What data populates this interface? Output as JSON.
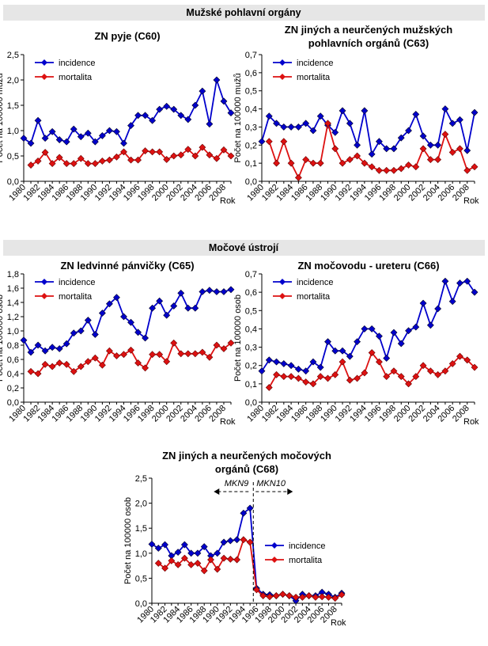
{
  "headers": [
    "Mužské pohlavní orgány",
    "Močové ústrojí"
  ],
  "chart_data": [
    {
      "type": "line",
      "title": [
        "ZN pyje (C60)"
      ],
      "ylabel": "Počet na 100000 mužů",
      "xlabel": "Rok",
      "legend": "upper left",
      "categories": [
        "1980",
        null,
        "1982",
        null,
        "1984",
        null,
        "1986",
        null,
        "1988",
        null,
        "1990",
        null,
        "1992",
        null,
        "1994",
        null,
        "1996",
        null,
        "1998",
        null,
        "2000",
        null,
        "2002",
        null,
        "2004",
        null,
        "2006",
        null,
        "2008",
        null
      ],
      "ylim": [
        0,
        2.5
      ],
      "yticks": [
        {
          "value": 0,
          "label": "0,0"
        },
        {
          "value": 0.5,
          "label": "0,5"
        },
        {
          "value": 1,
          "label": "1,0"
        },
        {
          "value": 1.5,
          "label": "1,5"
        },
        {
          "value": 2,
          "label": "2,0"
        },
        {
          "value": 2.5,
          "label": "2,5"
        }
      ],
      "series": [
        {
          "name": "incidence",
          "color": "#0000cc",
          "values": [
            0.85,
            0.75,
            1.2,
            0.85,
            0.98,
            0.82,
            0.78,
            1.03,
            0.88,
            0.95,
            0.78,
            0.9,
            1.0,
            0.98,
            0.75,
            1.1,
            1.3,
            1.3,
            1.2,
            1.42,
            1.48,
            1.42,
            1.3,
            1.22,
            1.5,
            1.78,
            1.13,
            2.0,
            1.58,
            1.35
          ]
        },
        {
          "name": "mortalita",
          "color": "#dd1111",
          "values": [
            null,
            0.32,
            0.4,
            0.57,
            0.35,
            0.47,
            0.35,
            0.35,
            0.45,
            0.35,
            0.35,
            0.4,
            0.42,
            0.48,
            0.58,
            0.42,
            0.42,
            0.6,
            0.58,
            0.58,
            0.43,
            0.5,
            0.52,
            0.63,
            0.5,
            0.67,
            0.52,
            0.45,
            0.62,
            0.5
          ]
        }
      ]
    },
    {
      "type": "line",
      "title": [
        "ZN jiných a neurčených mužských",
        "pohlavních orgánů (C63)"
      ],
      "ylabel": "Počet na 100000 mužů",
      "xlabel": "Rok",
      "legend": "upper left",
      "categories": [
        "1980",
        null,
        "1982",
        null,
        "1984",
        null,
        "1986",
        null,
        "1988",
        null,
        "1990",
        null,
        "1992",
        null,
        "1994",
        null,
        "1996",
        null,
        "1998",
        null,
        "2000",
        null,
        "2002",
        null,
        "2004",
        null,
        "2006",
        null,
        "2008",
        null
      ],
      "ylim": [
        0,
        0.7
      ],
      "yticks": [
        {
          "value": 0,
          "label": "0,0"
        },
        {
          "value": 0.1,
          "label": "0,1"
        },
        {
          "value": 0.2,
          "label": "0,2"
        },
        {
          "value": 0.3,
          "label": "0,3"
        },
        {
          "value": 0.4,
          "label": "0,4"
        },
        {
          "value": 0.5,
          "label": "0,5"
        },
        {
          "value": 0.6,
          "label": "0,6"
        },
        {
          "value": 0.7,
          "label": "0,7"
        }
      ],
      "series": [
        {
          "name": "incidence",
          "color": "#0000cc",
          "values": [
            0.22,
            0.36,
            0.32,
            0.3,
            0.3,
            0.3,
            0.32,
            0.28,
            0.36,
            0.31,
            0.27,
            0.39,
            0.32,
            0.2,
            0.39,
            0.15,
            0.22,
            0.18,
            0.18,
            0.24,
            0.28,
            0.37,
            0.25,
            0.2,
            0.2,
            0.4,
            0.32,
            0.34,
            0.17,
            0.38
          ]
        },
        {
          "name": "mortalita",
          "color": "#dd1111",
          "values": [
            null,
            0.22,
            0.1,
            0.22,
            0.1,
            0.02,
            0.12,
            0.1,
            0.1,
            0.32,
            0.18,
            0.1,
            0.12,
            0.14,
            0.1,
            0.08,
            0.06,
            0.06,
            0.06,
            0.07,
            0.09,
            0.08,
            0.18,
            0.12,
            0.12,
            0.26,
            0.16,
            0.18,
            0.06,
            0.08
          ]
        }
      ]
    },
    {
      "type": "line",
      "title": [
        "ZN ledvinné pánvičky (C65)"
      ],
      "ylabel": "Počet na 100000 osob",
      "xlabel": "Rok",
      "legend": "upper left",
      "categories": [
        "1980",
        null,
        "1982",
        null,
        "1984",
        null,
        "1986",
        null,
        "1988",
        null,
        "1990",
        null,
        "1992",
        null,
        "1994",
        null,
        "1996",
        null,
        "1998",
        null,
        "2000",
        null,
        "2002",
        null,
        "2004",
        null,
        "2006",
        null,
        "2008",
        null
      ],
      "ylim": [
        0,
        1.8
      ],
      "yticks": [
        {
          "value": 0,
          "label": "0,0"
        },
        {
          "value": 0.2,
          "label": "0,2"
        },
        {
          "value": 0.4,
          "label": "0,4"
        },
        {
          "value": 0.6,
          "label": "0,6"
        },
        {
          "value": 0.8,
          "label": "0,8"
        },
        {
          "value": 1,
          "label": "1,0"
        },
        {
          "value": 1.2,
          "label": "1,2"
        },
        {
          "value": 1.4,
          "label": "1,4"
        },
        {
          "value": 1.6,
          "label": "1,6"
        },
        {
          "value": 1.8,
          "label": "1,8"
        }
      ],
      "series": [
        {
          "name": "incidence",
          "color": "#0000cc",
          "values": [
            0.87,
            0.7,
            0.8,
            0.72,
            0.77,
            0.75,
            0.82,
            0.97,
            1.0,
            1.15,
            0.95,
            1.25,
            1.38,
            1.47,
            1.2,
            1.12,
            0.98,
            0.9,
            1.32,
            1.42,
            1.22,
            1.35,
            1.53,
            1.32,
            1.32,
            1.55,
            1.57,
            1.55,
            1.55,
            1.58
          ]
        },
        {
          "name": "mortalita",
          "color": "#dd1111",
          "values": [
            null,
            0.43,
            0.4,
            0.53,
            0.5,
            0.55,
            0.53,
            0.43,
            0.5,
            0.57,
            0.62,
            0.52,
            0.72,
            0.65,
            0.67,
            0.73,
            0.55,
            0.48,
            0.67,
            0.67,
            0.57,
            0.83,
            0.68,
            0.68,
            0.68,
            0.7,
            0.63,
            0.8,
            0.75,
            0.83
          ]
        }
      ]
    },
    {
      "type": "line",
      "title": [
        "ZN močovodu - ureteru (C66)"
      ],
      "ylabel": "Počet na 100000 osob",
      "xlabel": "Rok",
      "legend": "upper left",
      "categories": [
        "1980",
        null,
        "1982",
        null,
        "1984",
        null,
        "1986",
        null,
        "1988",
        null,
        "1990",
        null,
        "1992",
        null,
        "1994",
        null,
        "1996",
        null,
        "1998",
        null,
        "2000",
        null,
        "2002",
        null,
        "2004",
        null,
        "2006",
        null,
        "2008",
        null
      ],
      "ylim": [
        0,
        0.7
      ],
      "yticks": [
        {
          "value": 0,
          "label": "0,0"
        },
        {
          "value": 0.1,
          "label": "0,1"
        },
        {
          "value": 0.2,
          "label": "0,2"
        },
        {
          "value": 0.3,
          "label": "0,3"
        },
        {
          "value": 0.4,
          "label": "0,4"
        },
        {
          "value": 0.5,
          "label": "0,5"
        },
        {
          "value": 0.6,
          "label": "0,6"
        },
        {
          "value": 0.7,
          "label": "0,7"
        }
      ],
      "series": [
        {
          "name": "incidence",
          "color": "#0000cc",
          "values": [
            0.17,
            0.23,
            0.22,
            0.21,
            0.2,
            0.18,
            0.17,
            0.22,
            0.19,
            0.33,
            0.28,
            0.28,
            0.25,
            0.33,
            0.4,
            0.4,
            0.36,
            0.24,
            0.38,
            0.32,
            0.39,
            0.41,
            0.54,
            0.42,
            0.51,
            0.66,
            0.55,
            0.65,
            0.66,
            0.6
          ]
        },
        {
          "name": "mortalita",
          "color": "#dd1111",
          "values": [
            null,
            0.08,
            0.15,
            0.14,
            0.14,
            0.13,
            0.11,
            0.1,
            0.14,
            0.13,
            0.15,
            0.22,
            0.12,
            0.13,
            0.16,
            0.27,
            0.22,
            0.14,
            0.17,
            0.14,
            0.1,
            0.14,
            0.2,
            0.17,
            0.15,
            0.17,
            0.21,
            0.25,
            0.23,
            0.19
          ]
        }
      ]
    },
    {
      "type": "line",
      "title": [
        "ZN jiných a neurčených močových",
        "orgánů (C68)"
      ],
      "ylabel": "Počet na 100000 osob",
      "xlabel": "Rok",
      "legend": "center right",
      "annotations": [
        "MKN9",
        "MKN10"
      ],
      "categories": [
        "1980",
        null,
        "1982",
        null,
        "1984",
        null,
        "1986",
        null,
        "1988",
        null,
        "1990",
        null,
        "1992",
        null,
        "1994",
        null,
        "1996",
        null,
        "1998",
        null,
        "2000",
        null,
        "2002",
        null,
        "2004",
        null,
        "2006",
        null,
        "2008",
        null
      ],
      "ylim": [
        0,
        2.5
      ],
      "yticks": [
        {
          "value": 0,
          "label": "0,0"
        },
        {
          "value": 0.5,
          "label": "0,5"
        },
        {
          "value": 1,
          "label": "1,0"
        },
        {
          "value": 1.5,
          "label": "1,5"
        },
        {
          "value": 2,
          "label": "2,0"
        },
        {
          "value": 2.5,
          "label": "2,5"
        }
      ],
      "series": [
        {
          "name": "incidence",
          "color": "#0000cc",
          "values": [
            1.18,
            1.1,
            1.17,
            0.95,
            1.02,
            1.17,
            1.0,
            1.0,
            1.13,
            0.95,
            1.0,
            1.22,
            1.25,
            1.27,
            1.8,
            1.9,
            0.3,
            0.18,
            0.17,
            0.15,
            0.18,
            0.15,
            0.05,
            0.18,
            0.15,
            0.15,
            0.22,
            0.18,
            0.12,
            0.2
          ]
        },
        {
          "name": "mortalita",
          "color": "#dd1111",
          "values": [
            null,
            0.8,
            0.7,
            0.85,
            0.77,
            0.9,
            0.77,
            0.8,
            0.65,
            0.87,
            0.68,
            0.9,
            0.88,
            0.87,
            1.27,
            1.22,
            0.27,
            0.15,
            0.13,
            0.15,
            0.18,
            0.15,
            0.12,
            0.12,
            0.15,
            0.12,
            0.13,
            0.12,
            0.1,
            0.17
          ]
        }
      ]
    }
  ]
}
